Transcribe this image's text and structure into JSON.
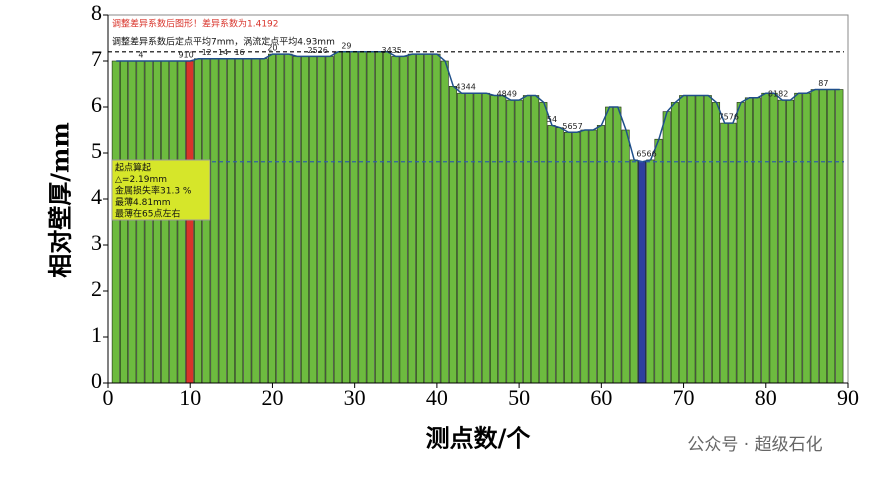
{
  "chart_data": {
    "type": "bar",
    "title": "调整差异系数后图形！差异系数为1.4192",
    "subtitle": "调整差异系数后定点平均7mm，涡流定点平均4.93mm",
    "ylabel": "相对壁厚/mm",
    "xlabel": "测点数/个",
    "x": [
      1,
      2,
      3,
      4,
      5,
      6,
      7,
      8,
      9,
      10,
      11,
      12,
      13,
      14,
      15,
      16,
      17,
      18,
      19,
      20,
      21,
      22,
      23,
      24,
      25,
      26,
      27,
      28,
      29,
      30,
      31,
      32,
      33,
      34,
      35,
      36,
      37,
      38,
      39,
      40,
      41,
      42,
      43,
      44,
      45,
      46,
      47,
      48,
      49,
      50,
      51,
      52,
      53,
      54,
      55,
      56,
      57,
      58,
      59,
      60,
      61,
      62,
      63,
      64,
      65,
      66,
      67,
      68,
      69,
      70,
      71,
      72,
      73,
      74,
      75,
      76,
      77,
      78,
      79,
      80,
      81,
      82,
      83,
      84,
      85,
      86,
      87,
      88,
      89
    ],
    "values": [
      7.0,
      7.0,
      7.0,
      7.0,
      7.0,
      7.0,
      7.0,
      7.0,
      7.0,
      7.0,
      7.05,
      7.05,
      7.05,
      7.05,
      7.05,
      7.05,
      7.05,
      7.05,
      7.05,
      7.15,
      7.15,
      7.15,
      7.1,
      7.1,
      7.1,
      7.1,
      7.1,
      7.2,
      7.2,
      7.2,
      7.2,
      7.2,
      7.2,
      7.2,
      7.1,
      7.1,
      7.15,
      7.15,
      7.15,
      7.15,
      7.0,
      6.45,
      6.3,
      6.3,
      6.3,
      6.3,
      6.25,
      6.25,
      6.15,
      6.15,
      6.25,
      6.25,
      6.1,
      5.6,
      5.55,
      5.45,
      5.45,
      5.5,
      5.5,
      5.6,
      6.0,
      6.0,
      5.5,
      4.85,
      4.81,
      4.85,
      5.3,
      5.9,
      6.1,
      6.25,
      6.25,
      6.25,
      6.25,
      6.1,
      5.65,
      5.65,
      6.1,
      6.2,
      6.2,
      6.3,
      6.3,
      6.15,
      6.15,
      6.3,
      6.3,
      6.38,
      6.38,
      6.38,
      6.38
    ],
    "color": "#6dbb3f",
    "line_color": "#1f4f8a",
    "highlight_colors": {
      "10": "#d9342b",
      "65": "#2e3f9e"
    },
    "xlim": [
      0,
      90
    ],
    "xticks": [
      0,
      10,
      20,
      30,
      40,
      50,
      60,
      70,
      80,
      90
    ],
    "ylim": [
      0,
      8
    ],
    "yticks": [
      0,
      1,
      2,
      3,
      4,
      5,
      6,
      7,
      8
    ],
    "reference_lines": [
      {
        "value": 7.2,
        "color": "#000000"
      },
      {
        "value": 4.81,
        "color": "#2e5fa8"
      }
    ],
    "point_labels": [
      {
        "x": 4,
        "label": "4"
      },
      {
        "x": 9.5,
        "label": "910"
      },
      {
        "x": 12,
        "label": "12"
      },
      {
        "x": 14,
        "label": "14"
      },
      {
        "x": 16,
        "label": "16"
      },
      {
        "x": 20,
        "label": "20"
      },
      {
        "x": 25.5,
        "label": "2526"
      },
      {
        "x": 29,
        "label": "29"
      },
      {
        "x": 34.5,
        "label": "3435"
      },
      {
        "x": 43.5,
        "label": "4344"
      },
      {
        "x": 48.5,
        "label": "4849"
      },
      {
        "x": 54,
        "label": "54"
      },
      {
        "x": 56.5,
        "label": "5657"
      },
      {
        "x": 65.5,
        "label": "6566"
      },
      {
        "x": 75.5,
        "label": "7576"
      },
      {
        "x": 81.5,
        "label": "8182"
      },
      {
        "x": 87,
        "label": "87"
      }
    ],
    "note_box": [
      "起点算起",
      "△=2.19mm",
      "金属损失率31.3 %",
      "最薄4.81mm",
      "最薄在65点左右"
    ],
    "watermark": "公众号 · 超级石化"
  }
}
